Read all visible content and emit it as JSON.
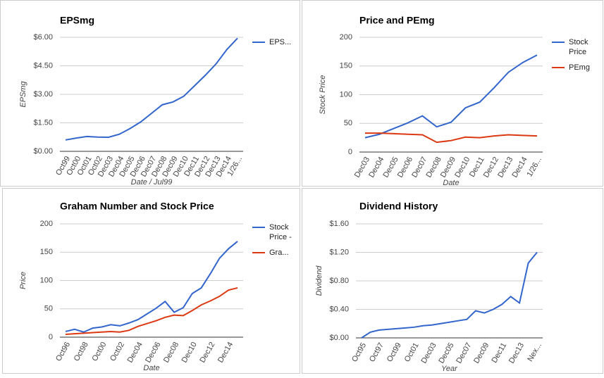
{
  "chart_data": [
    {
      "type": "line",
      "title": "EPSmg",
      "y_label": "EPSmg",
      "x_label": "Date / Jul99",
      "categories": [
        "Oct99",
        "Oct00",
        "Oct01",
        "Oct02",
        "Dec03",
        "Dec04",
        "Dec05",
        "Dec06",
        "Dec07",
        "Dec08",
        "Dec09",
        "Dec10",
        "Dec11",
        "Dec12",
        "Dec13",
        "Dec14",
        "1/26..."
      ],
      "series": [
        {
          "name": "EPS...",
          "color": "#3366cc",
          "values": [
            0.6,
            0.7,
            0.78,
            0.75,
            0.74,
            0.9,
            1.2,
            1.55,
            2.0,
            2.45,
            2.6,
            2.9,
            3.45,
            4.0,
            4.6,
            5.35,
            5.95
          ]
        }
      ],
      "ylim": [
        0,
        6
      ],
      "yticks": [
        {
          "value": 0,
          "label": "$0.00"
        },
        {
          "value": 1.5,
          "label": "$1.50"
        },
        {
          "value": 3,
          "label": "$3.00"
        },
        {
          "value": 4.5,
          "label": "$4.50"
        },
        {
          "value": 6,
          "label": "$6.00"
        }
      ],
      "grid": true,
      "legend": "right"
    },
    {
      "type": "line",
      "title": "Price and PEmg",
      "y_label": "Stock Price",
      "x_label": "Date",
      "categories": [
        "Dec03",
        "Dec04",
        "Dec05",
        "Dec06",
        "Dec07",
        "Dec08",
        "Dec09",
        "Dec10",
        "Dec11",
        "Dec12",
        "Dec13",
        "Dec14",
        "1/26..."
      ],
      "series": [
        {
          "name": "Stock Price",
          "color": "#3366cc",
          "values": [
            25,
            31,
            41,
            51,
            63,
            44,
            52,
            77,
            87,
            112,
            139,
            156,
            169
          ]
        },
        {
          "name": "PEmg",
          "color": "#dc3912",
          "values": [
            33,
            33,
            32,
            31,
            30,
            17,
            20,
            26,
            25,
            28,
            30,
            29,
            28
          ]
        }
      ],
      "ylim": [
        0,
        200
      ],
      "yticks": [
        0,
        50,
        100,
        150,
        200
      ],
      "grid": true,
      "legend": "right"
    },
    {
      "type": "line",
      "title": "Graham Number and Stock Price",
      "y_label": "Price",
      "x_label": "Date",
      "categories": [
        "Oct96",
        null,
        "Oct98",
        null,
        "Oct00",
        null,
        "Oct02",
        null,
        "Dec04",
        null,
        "Dec06",
        null,
        "Dec08",
        null,
        "Dec10",
        null,
        "Dec12",
        null,
        "Dec14",
        null
      ],
      "series": [
        {
          "name": "Stock Price -",
          "color": "#3366cc",
          "values": [
            10,
            14,
            9,
            16,
            18,
            22,
            20,
            25,
            31,
            41,
            51,
            63,
            44,
            52,
            77,
            87,
            112,
            139,
            156,
            169
          ]
        },
        {
          "name": "Gra...",
          "color": "#dc3912",
          "values": [
            5,
            6,
            7,
            8,
            9,
            10,
            9,
            12,
            19,
            24,
            29,
            35,
            39,
            38,
            47,
            57,
            64,
            72,
            83,
            87
          ]
        }
      ],
      "ylim": [
        0,
        200
      ],
      "yticks": [
        0,
        50,
        100,
        150,
        200
      ],
      "grid": true,
      "legend": "right"
    },
    {
      "type": "line",
      "title": "Dividend History",
      "y_label": "Dividend",
      "x_label": "Year",
      "categories": [
        "Oct95",
        null,
        "Oct97",
        null,
        "Oct99",
        null,
        "Oct01",
        null,
        "Dec03",
        null,
        "Dec05",
        null,
        "Dec07",
        null,
        "Dec09",
        null,
        "Dec11",
        null,
        "Dec13",
        null,
        "Nex..."
      ],
      "series": [
        {
          "name": "Dividend",
          "color": "#3366cc",
          "values": [
            0,
            0.08,
            0.11,
            0.12,
            0.13,
            0.14,
            0.15,
            0.17,
            0.18,
            0.2,
            0.22,
            0.24,
            0.26,
            0.38,
            0.35,
            0.4,
            0.47,
            0.58,
            0.49,
            1.05,
            1.2
          ]
        }
      ],
      "ylim": [
        0,
        1.6
      ],
      "yticks": [
        {
          "value": 0,
          "label": "$0.00"
        },
        {
          "value": 0.4,
          "label": "$0.40"
        },
        {
          "value": 0.8,
          "label": "$0.80"
        },
        {
          "value": 1.2,
          "label": "$1.20"
        },
        {
          "value": 1.6,
          "label": "$1.60"
        }
      ],
      "grid": true,
      "legend": "none"
    }
  ]
}
